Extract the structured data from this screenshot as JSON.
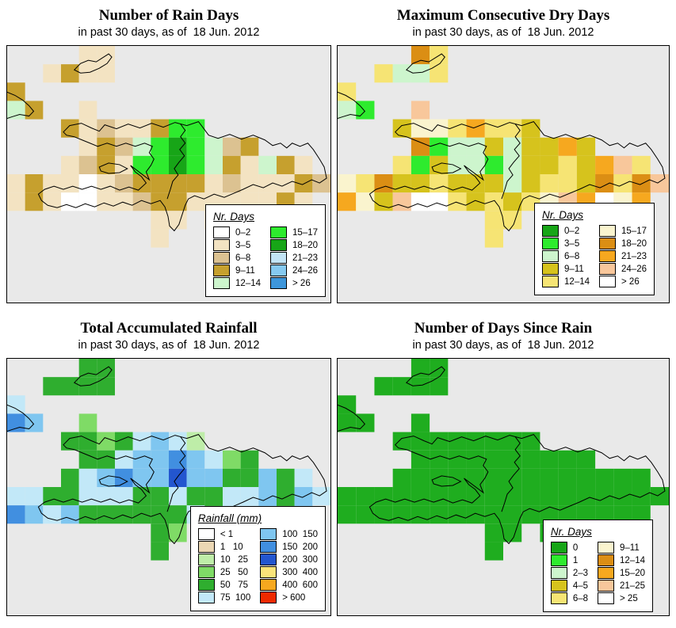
{
  "page": {
    "background": "#ffffff",
    "sea_color": "#e9e9e9",
    "date_line": "in past 30 days, as of  18 Jun. 2012"
  },
  "panels": [
    {
      "id": "rain-days",
      "title": "Number of Rain Days",
      "subtitle": "in past 30 days, as of  18 Jun. 2012",
      "legend": {
        "title": "Nr. Days",
        "columns": [
          [
            {
              "label": "0–2",
              "color": "#FFFFFF"
            },
            {
              "label": "3–5",
              "color": "#F3E3C2"
            },
            {
              "label": "6–8",
              "color": "#DCC291"
            },
            {
              "label": "9–11",
              "color": "#C6A02E"
            },
            {
              "label": "12–14",
              "color": "#CDF5CD"
            }
          ],
          [
            {
              "label": "15–17",
              "color": "#2EEB2E"
            },
            {
              "label": "18–20",
              "color": "#17A517"
            },
            {
              "label": "21–23",
              "color": "#C2E4F5"
            },
            {
              "label": "24–26",
              "color": "#85C9F0"
            },
            {
              "label": "> 26",
              "color": "#3D96DB"
            }
          ]
        ]
      },
      "map": {
        "palette": {
          "A": "#FFFFFF",
          "B": "#F3E3C2",
          "C": "#DCC291",
          "D": "#C6A02E",
          "E": "#CDF5CD",
          "F": "#2EEB2E",
          "G": "#17A517",
          "H": "#C2E4F5",
          "I": "#85C9F0",
          "J": "#3D96DB"
        },
        "grid": [
          "....BB............",
          "..BDBB............",
          "D.................",
          "ED..B.............",
          "...DBCBBDFF.......",
          "....BDCEFGFECD....",
          "...BCDBFFGFEDBEDB.",
          "BDBBABCDDDDBCBBBDC",
          "BDBAABBCDDBBBBBDB.",
          "........BB.B...DB.",
          "........B.........",
          "..................",
          "..................",
          ".................."
        ]
      }
    },
    {
      "id": "max-consecutive-dry-days",
      "title": "Maximum Consecutive Dry Days",
      "subtitle": "in past 30 days, as of  18 Jun. 2012",
      "legend": {
        "title": "Nr. Days",
        "columns": [
          [
            {
              "label": "0–2",
              "color": "#17A517"
            },
            {
              "label": "3–5",
              "color": "#2EEB2E"
            },
            {
              "label": "6–8",
              "color": "#CDF5CD"
            },
            {
              "label": "9–11",
              "color": "#D6C31D"
            },
            {
              "label": "12–14",
              "color": "#F6E474"
            }
          ],
          [
            {
              "label": "15–17",
              "color": "#FAF4CE"
            },
            {
              "label": "18–20",
              "color": "#DB8E14"
            },
            {
              "label": "21–23",
              "color": "#F6A81F"
            },
            {
              "label": "24–26",
              "color": "#F8C79B"
            },
            {
              "label": "> 26",
              "color": "#FFFFFF"
            }
          ]
        ]
      },
      "map": {
        "palette": {
          "A": "#17A517",
          "B": "#2EEB2E",
          "C": "#CDF5CD",
          "D": "#D6C31D",
          "E": "#F6E474",
          "F": "#FAF4CE",
          "G": "#DB8E14",
          "H": "#F6A81F",
          "I": "#F8C79B",
          "J": "#FFFFFF"
        },
        "grid": [
          "....GE............",
          "..ECCE............",
          "E.................",
          "CB..I.............",
          "...DFFEHEED.......",
          "....GBCCDCDDHD....",
          "...EBDCCBCDDEDHIE.",
          "FEGDDEDDDCDEEDGEGI",
          "HFDIJJEDEDEFIHJFH.",
          "........EE.I...EH.",
          "........E.........",
          "..................",
          "..................",
          ".................."
        ]
      }
    },
    {
      "id": "total-accumulated-rainfall",
      "title": "Total Accumulated Rainfall",
      "subtitle": "in past 30 days, as of  18 Jun. 2012",
      "legend": {
        "title": "Rainfall (mm)",
        "columns": [
          [
            {
              "label": "< 1",
              "color": "#FFFFFF"
            },
            {
              "label": "1   10",
              "color": "#EBD7B4"
            },
            {
              "label": "10   25",
              "color": "#BEEDA8"
            },
            {
              "label": "25   50",
              "color": "#7FDB66"
            },
            {
              "label": "50   75",
              "color": "#2FAE2F"
            },
            {
              "label": "75  100",
              "color": "#C2E8F8"
            }
          ],
          [
            {
              "label": "100  150",
              "color": "#7FC6F0"
            },
            {
              "label": "150  200",
              "color": "#418FE0"
            },
            {
              "label": "200  300",
              "color": "#2356CF"
            },
            {
              "label": "300  400",
              "color": "#FAE47A"
            },
            {
              "label": "400  600",
              "color": "#F6A81F"
            },
            {
              "label": "> 600",
              "color": "#EE2A00"
            }
          ]
        ]
      },
      "map": {
        "palette": {
          "A": "#FFFFFF",
          "B": "#EBD7B4",
          "C": "#BEEDA8",
          "D": "#7FDB66",
          "E": "#2FAE2F",
          "F": "#C2E8F8",
          "G": "#7FC6F0",
          "H": "#418FE0",
          "I": "#2356CF",
          "J": "#FAE47A",
          "K": "#F6A81F",
          "L": "#EE2A00"
        },
        "grid": [
          "....EE............",
          "..EEEE............",
          "F.................",
          "HG..D.............",
          "...EEDEFGFC.......",
          "....EEFGGHGFDE....",
          "...EFGHGGIGGEEGEF.",
          "FFEEFFFEEFEEFFGEGF",
          "HGFGEEEEEEFEFFGEG.",
          "........ED.F...FG.",
          "........E.........",
          "..................",
          "..................",
          ".................."
        ]
      }
    },
    {
      "id": "days-since-rain",
      "title": "Number of Days Since Rain",
      "subtitle": "in past 30 days, as of  18 Jun. 2012",
      "legend": {
        "title": "Nr. Days",
        "columns": [
          [
            {
              "label": "0",
              "color": "#17A517"
            },
            {
              "label": "1",
              "color": "#2EEB2E"
            },
            {
              "label": "2–3",
              "color": "#CDF5CD"
            },
            {
              "label": "4–5",
              "color": "#D6C31D"
            },
            {
              "label": "6–8",
              "color": "#F6E474"
            }
          ],
          [
            {
              "label": "9–11",
              "color": "#FAF4CE"
            },
            {
              "label": "12–14",
              "color": "#DB8E14"
            },
            {
              "label": "15–20",
              "color": "#F6A81F"
            },
            {
              "label": "21–25",
              "color": "#F8C79B"
            },
            {
              "label": "> 25",
              "color": "#FFFFFF"
            }
          ]
        ]
      },
      "map": {
        "palette": {
          "A": "#1FAD1F"
        },
        "grid": [
          "....AA............",
          "..AAAA............",
          "A.................",
          "AA..A.............",
          "...AAAAAAAA.......",
          "....AAAAAAAAAA....",
          "...AAAAAAAAAAAAAA.",
          "AAAAAAAAAAAAAAAAAA",
          "AAAAAAAAAAAAAAAAA.",
          "........AA.A...AA.",
          "........A.........",
          "..................",
          "..................",
          ".................."
        ]
      }
    }
  ]
}
